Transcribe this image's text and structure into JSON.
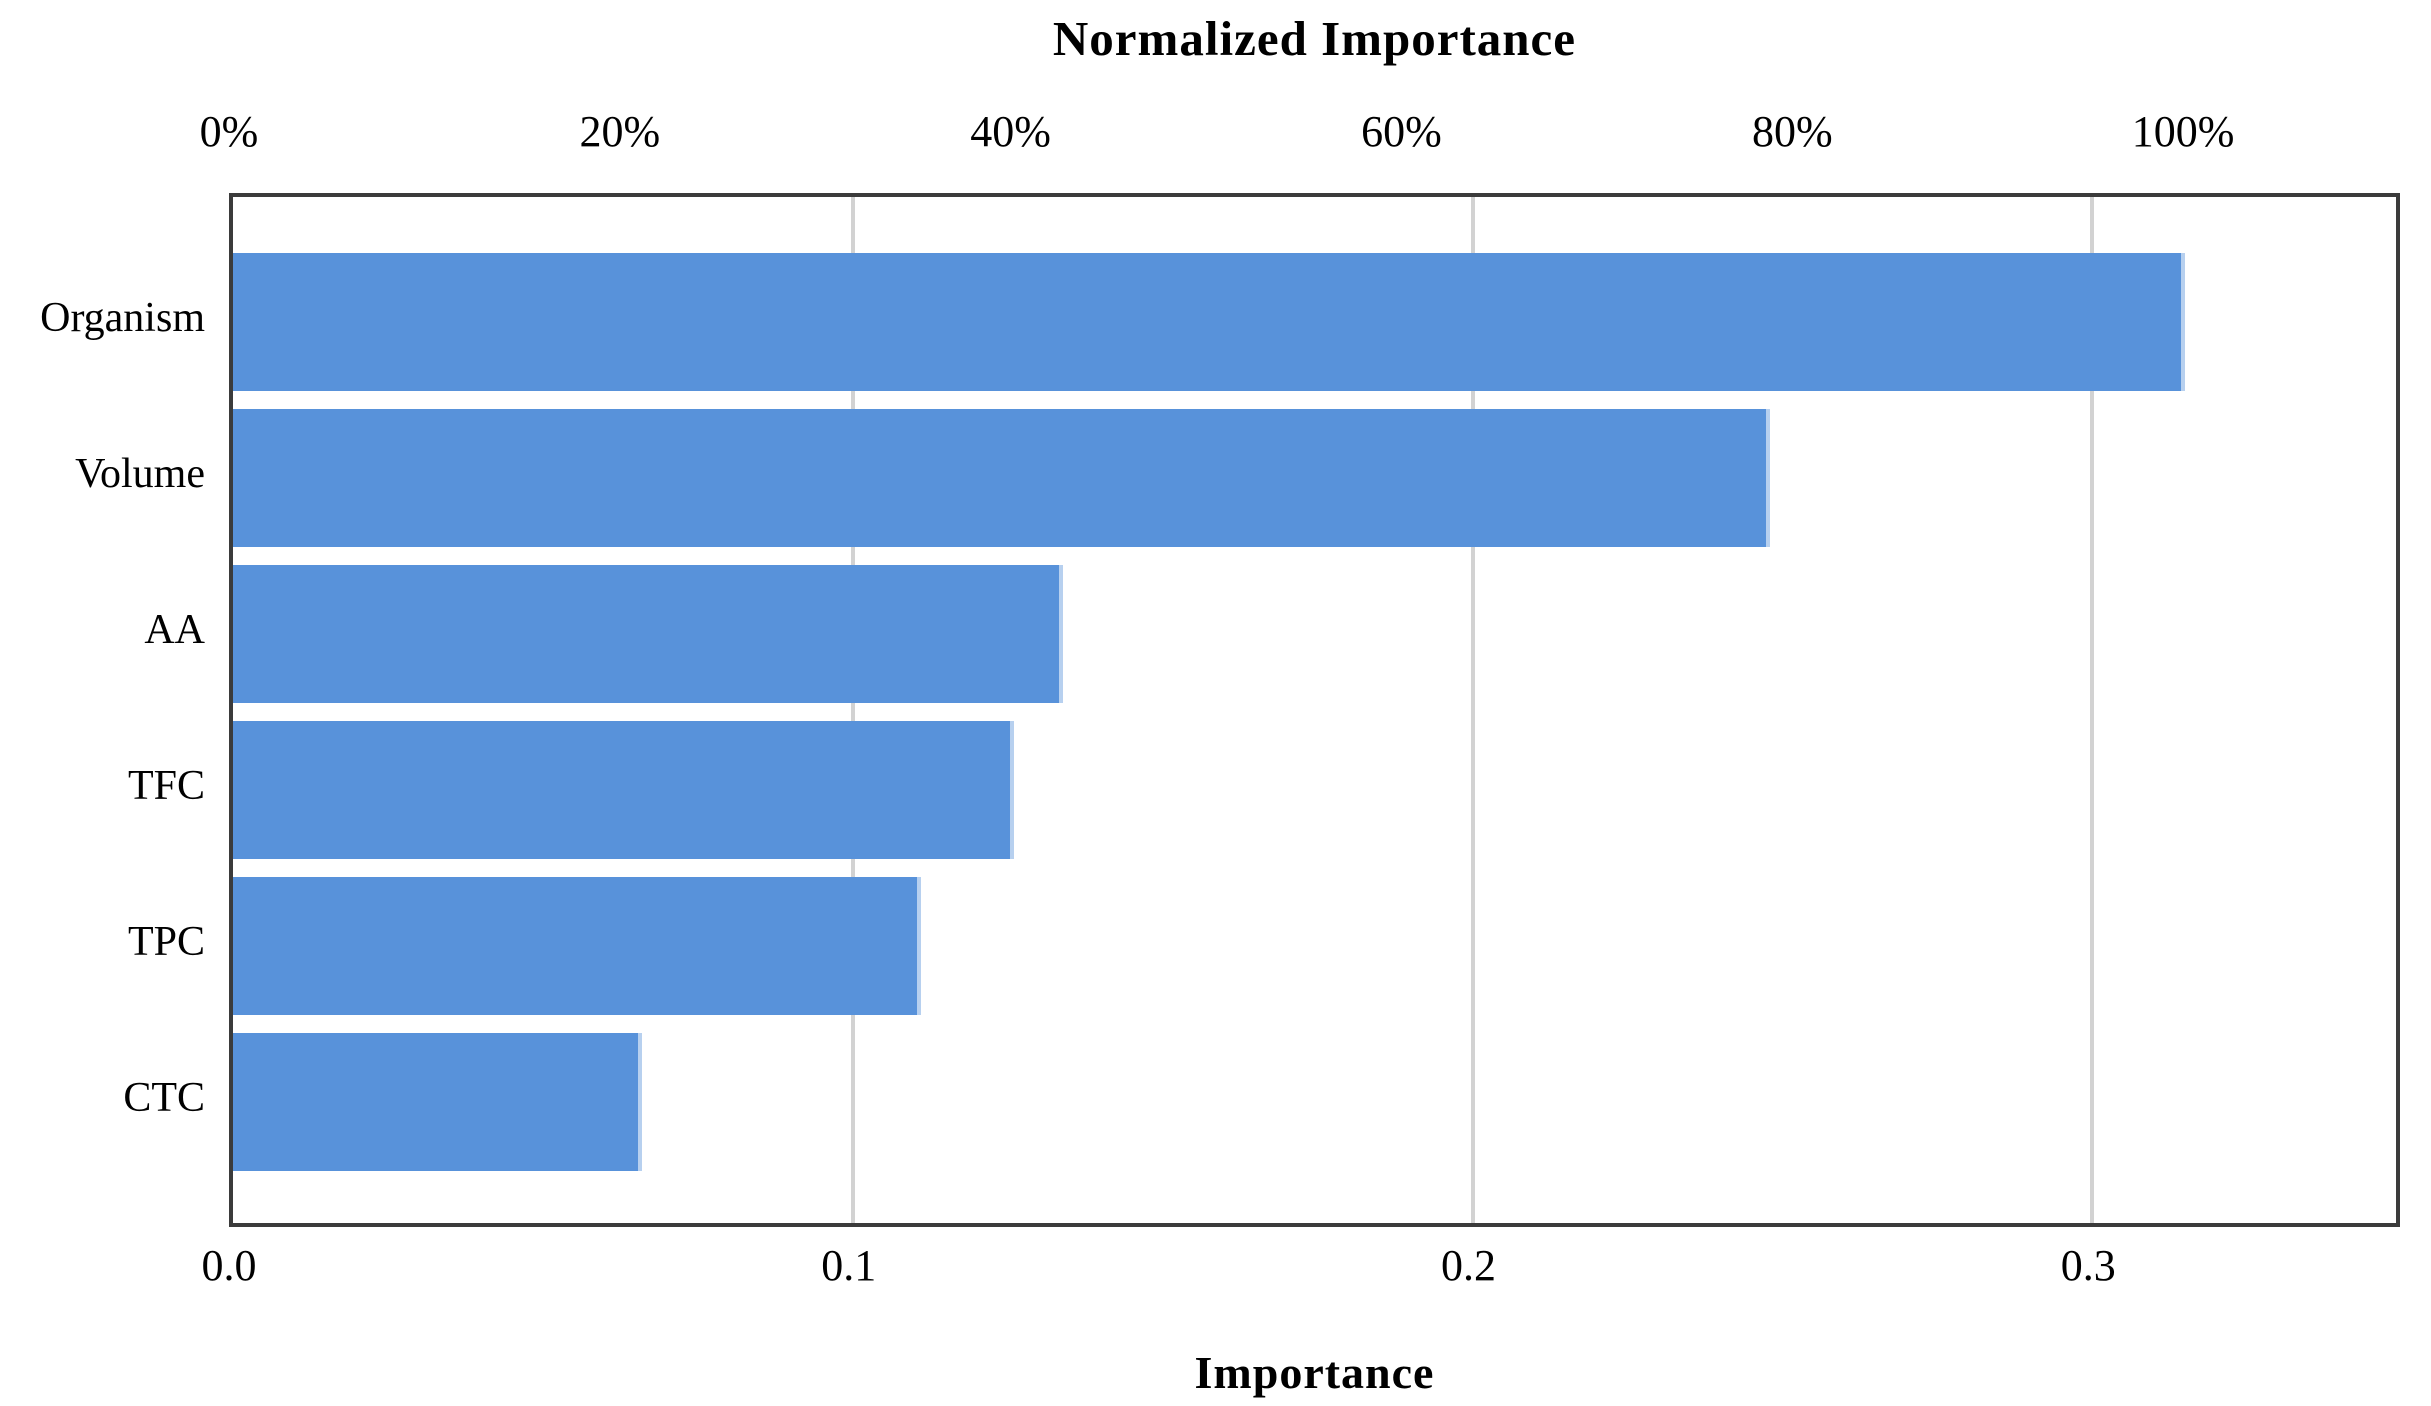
{
  "chart_data": {
    "type": "bar",
    "orientation": "horizontal",
    "title": "Normalized Importance",
    "bottom_axis_title": "Importance",
    "categories": [
      "Organism",
      "Volume",
      "AA",
      "TFC",
      "TPC",
      "CTC"
    ],
    "values": [
      0.315,
      0.248,
      0.134,
      0.126,
      0.111,
      0.066
    ],
    "normalized_percent": [
      100,
      78.7,
      42.5,
      40.0,
      35.2,
      21.0
    ],
    "bottom_axis": {
      "label": "Importance",
      "ticks": [
        0.0,
        0.1,
        0.2,
        0.3
      ],
      "tick_labels": [
        "0.0",
        "0.1",
        "0.2",
        "0.3"
      ],
      "axis_max": 0.3503
    },
    "top_axis": {
      "label": "Normalized Importance",
      "ticks_percent": [
        0,
        20,
        40,
        60,
        80,
        100
      ],
      "tick_labels": [
        "0%",
        "20%",
        "40%",
        "60%",
        "80%",
        "100%"
      ],
      "value_at_100_percent": 0.3153
    },
    "grid": {
      "vertical_gridlines_at": [
        0.1,
        0.2,
        0.3
      ],
      "color": "#d2d2d2"
    },
    "legend": "none",
    "bar_color": "#5892da",
    "bar_edge_color": "#b7d0ef",
    "frame_color": "#3b3b3b"
  }
}
